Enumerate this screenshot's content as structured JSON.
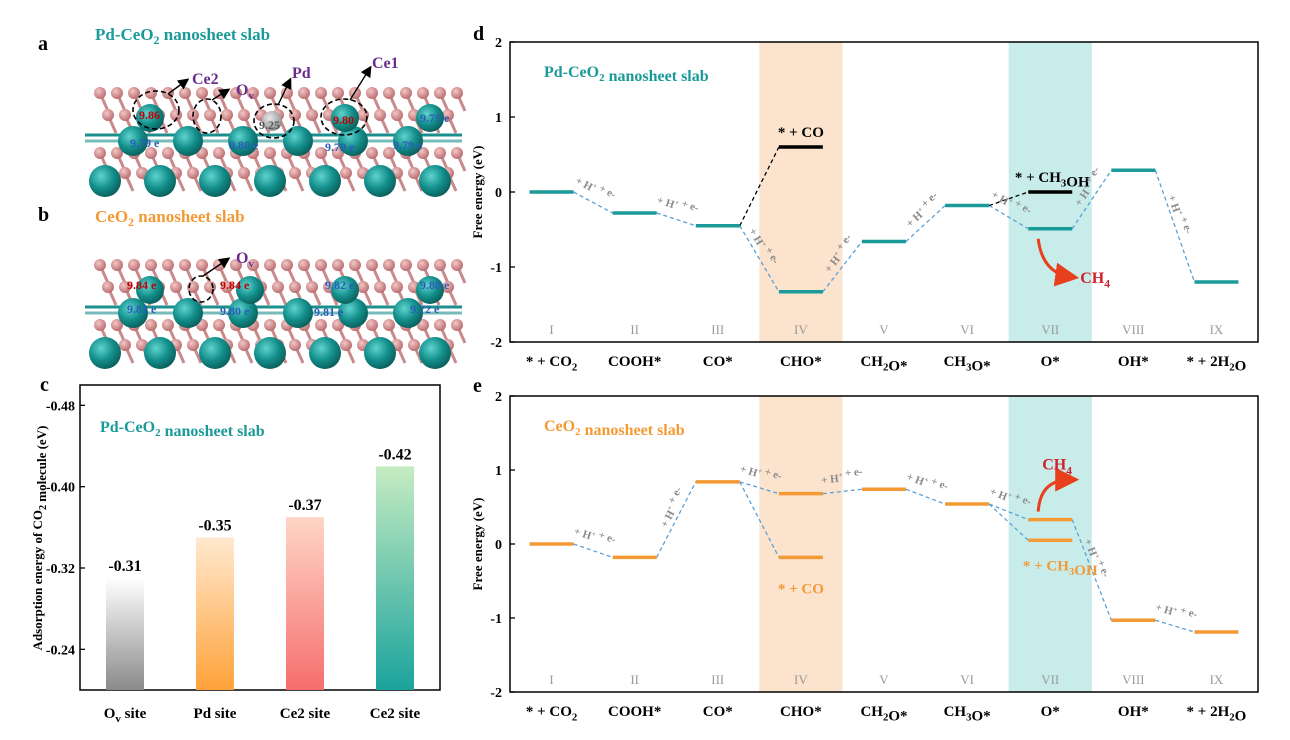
{
  "panel_labels": {
    "a": "a",
    "b": "b",
    "c": "c",
    "d": "d",
    "e": "e"
  },
  "colors": {
    "teal": "#1a9a98",
    "orange": "#f39a35",
    "purple": "#6a2b8f",
    "red_text": "#c00000",
    "blue_text": "#2a5cb8",
    "dash": "#5aa0d8",
    "step_gray": "#9a9a9a",
    "highlight_iv": "#fbe3cd",
    "highlight_vii": "#c8ecea",
    "ce_atom": "#138f8b",
    "o_atom": "#d4878a"
  },
  "panel_a": {
    "title": "Pd-CeO",
    "title_sub": "2",
    "title_rest": " nanosheet slab",
    "labels": {
      "ce2": "Ce2",
      "ov": "O",
      "ov_sub": "v",
      "pd": "Pd",
      "ce1": "Ce1"
    },
    "charges_red": [
      "9.86",
      "9.80"
    ],
    "charges_blue": [
      "9.79 e",
      "9.80 e",
      "9.79 e",
      "9.79 e",
      "9.79 e"
    ],
    "pd_charge": "9.25"
  },
  "panel_b": {
    "title": "CeO",
    "title_sub": "2",
    "title_rest": " nanosheet slab",
    "label_ov": "O",
    "label_ov_sub": "v",
    "charges_red": [
      "9.84 e",
      "9.84 e"
    ],
    "charges_blue": [
      "9.81 e",
      "9.80 e",
      "9.81 e",
      "9.82 e",
      "9.80 e",
      "9.72 e"
    ]
  },
  "chart_data": [
    {
      "id": "c",
      "type": "bar",
      "title": "Pd-CeO2 nanosheet slab",
      "title_parts": {
        "a": "Pd-CeO",
        "sub": "2",
        "b": " nanosheet slab"
      },
      "ylabel_parts": {
        "a": "Adsorption energy of CO",
        "sub": "2",
        "b": " molecule (eV)"
      },
      "xlabel": "",
      "ylim": [
        -0.2,
        -0.5
      ],
      "ytick_values": [
        -0.24,
        -0.32,
        -0.4,
        -0.48
      ],
      "ytick_labels": [
        "-0.24",
        "-0.32",
        "-0.40",
        "-0.48"
      ],
      "categories": [
        {
          "main": "O",
          "sub": "v",
          "rest": " site"
        },
        {
          "main": "Pd site",
          "sub": "",
          "rest": ""
        },
        {
          "main": "Ce2 site",
          "sub": "",
          "rest": ""
        },
        {
          "main": "Ce2 site",
          "sub": "",
          "rest": ""
        }
      ],
      "values": [
        -0.31,
        -0.35,
        -0.37,
        -0.42
      ],
      "value_labels": [
        "-0.31",
        "-0.35",
        "-0.37",
        "-0.42"
      ],
      "bar_gradients": [
        [
          "#ffffff",
          "#8a8a8a"
        ],
        [
          "#ffe9cf",
          "#ffa23a"
        ],
        [
          "#ffd6c6",
          "#f56e6e"
        ],
        [
          "#c6ecc2",
          "#1aa39c"
        ]
      ]
    },
    {
      "id": "d",
      "type": "line",
      "title_parts": {
        "a": "Pd-CeO",
        "sub": "2",
        "b": " nanosheet slab"
      },
      "ylabel": "Free energy (eV)",
      "ylim": [
        -2,
        2
      ],
      "ytick_values": [
        -2,
        -1,
        0,
        1,
        2
      ],
      "ytick_labels": [
        "-2",
        "-1",
        "0",
        "1",
        "2"
      ],
      "steps": [
        "I",
        "II",
        "III",
        "IV",
        "V",
        "VI",
        "VII",
        "VIII",
        "IX"
      ],
      "species": [
        [
          {
            "t": "* + CO"
          },
          {
            "t": "2",
            "s": 1
          }
        ],
        [
          {
            "t": "COOH*"
          }
        ],
        [
          {
            "t": "CO*"
          }
        ],
        [
          {
            "t": "CHO*"
          }
        ],
        [
          {
            "t": "CH"
          },
          {
            "t": "2",
            "s": 1
          },
          {
            "t": "O*"
          }
        ],
        [
          {
            "t": "CH"
          },
          {
            "t": "3",
            "s": 1
          },
          {
            "t": "O*"
          }
        ],
        [
          {
            "t": "O*"
          }
        ],
        [
          {
            "t": "OH*"
          }
        ],
        [
          {
            "t": "* + 2H"
          },
          {
            "t": "2",
            "s": 1
          },
          {
            "t": "O"
          }
        ]
      ],
      "series": [
        {
          "name": "main path",
          "values": [
            0.0,
            -0.28,
            -0.45,
            -1.33,
            -0.66,
            -0.18,
            -0.49,
            0.29,
            -1.2
          ]
        }
      ],
      "side_levels": [
        {
          "name": "* + CO",
          "step": 3,
          "value": 0.6,
          "from_step": 2,
          "parts": [
            {
              "t": "* + CO"
            }
          ]
        },
        {
          "name": "* + CH3OH",
          "step": 6,
          "value": 0.0,
          "from_step": 5,
          "parts": [
            {
              "t": "* + CH"
            },
            {
              "t": "3",
              "s": 1
            },
            {
              "t": "OH"
            }
          ]
        }
      ],
      "h_label": {
        "a": "+ H",
        "sup": "+",
        "b": " + e-"
      },
      "product_parts": {
        "a": "CH",
        "sub": "4"
      },
      "highlight_steps": [
        3,
        6
      ]
    },
    {
      "id": "e",
      "type": "line",
      "title_parts": {
        "a": "CeO",
        "sub": "2",
        "b": " nanosheet slab"
      },
      "ylabel": "Free energy (eV)",
      "ylim": [
        -2,
        2
      ],
      "ytick_values": [
        -2,
        -1,
        0,
        1,
        2
      ],
      "ytick_labels": [
        "-2",
        "-1",
        "0",
        "1",
        "2"
      ],
      "steps": [
        "I",
        "II",
        "III",
        "IV",
        "V",
        "VI",
        "VII",
        "VIII",
        "IX"
      ],
      "species": [
        [
          {
            "t": "* + CO"
          },
          {
            "t": "2",
            "s": 1
          }
        ],
        [
          {
            "t": "COOH*"
          }
        ],
        [
          {
            "t": "CO*"
          }
        ],
        [
          {
            "t": "CHO*"
          }
        ],
        [
          {
            "t": "CH"
          },
          {
            "t": "2",
            "s": 1
          },
          {
            "t": "O*"
          }
        ],
        [
          {
            "t": "CH"
          },
          {
            "t": "3",
            "s": 1
          },
          {
            "t": "O*"
          }
        ],
        [
          {
            "t": "O*"
          }
        ],
        [
          {
            "t": "OH*"
          }
        ],
        [
          {
            "t": "* + 2H"
          },
          {
            "t": "2",
            "s": 1
          },
          {
            "t": "O"
          }
        ]
      ],
      "series": [
        {
          "name": "main path",
          "values": [
            0.0,
            -0.18,
            0.84,
            0.68,
            0.74,
            0.54,
            0.33,
            -1.03,
            -1.19
          ]
        }
      ],
      "side_levels": [
        {
          "name": "* + CO",
          "step": 3,
          "value": -0.18,
          "from_step": 2,
          "parts": [
            {
              "t": "* + CO"
            }
          ]
        },
        {
          "name": "* + CH3OH",
          "step": 6,
          "value": 0.05,
          "from_step": 5,
          "parts": [
            {
              "t": "* + CH"
            },
            {
              "t": "3",
              "s": 1
            },
            {
              "t": "OH"
            }
          ]
        }
      ],
      "h_label": {
        "a": "+ H",
        "sup": "+",
        "b": " + e-"
      },
      "product_parts": {
        "a": "CH",
        "sub": "4"
      },
      "highlight_steps": [
        3,
        6
      ]
    }
  ]
}
